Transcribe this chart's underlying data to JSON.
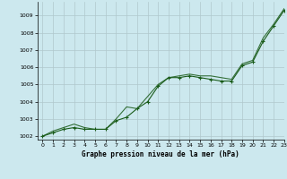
{
  "xlabel": "Graphe pression niveau de la mer (hPa)",
  "background_color": "#cce8ee",
  "grid_color": "#b0c8cc",
  "line_color1": "#1a5c1a",
  "line_color2": "#1a5c1a",
  "ylim": [
    1001.8,
    1009.8
  ],
  "xlim": [
    -0.5,
    23
  ],
  "yticks": [
    1002,
    1003,
    1004,
    1005,
    1006,
    1007,
    1008,
    1009
  ],
  "xticks": [
    0,
    1,
    2,
    3,
    4,
    5,
    6,
    7,
    8,
    9,
    10,
    11,
    12,
    13,
    14,
    15,
    16,
    17,
    18,
    19,
    20,
    21,
    22,
    23
  ],
  "series1_x": [
    0,
    1,
    2,
    3,
    4,
    5,
    6,
    7,
    8,
    9,
    10,
    11,
    12,
    13,
    14,
    15,
    16,
    17,
    18,
    19,
    20,
    21,
    22,
    23
  ],
  "series1_y": [
    1002.0,
    1002.2,
    1002.4,
    1002.5,
    1002.4,
    1002.4,
    1002.4,
    1002.9,
    1003.1,
    1003.6,
    1004.0,
    1004.9,
    1005.4,
    1005.4,
    1005.5,
    1005.4,
    1005.3,
    1005.2,
    1005.2,
    1006.1,
    1006.3,
    1007.5,
    1008.4,
    1009.3
  ],
  "series2_x": [
    0,
    1,
    2,
    3,
    4,
    5,
    6,
    7,
    8,
    9,
    10,
    11,
    12,
    13,
    14,
    15,
    16,
    17,
    18,
    19,
    20,
    21,
    22,
    23
  ],
  "series2_y": [
    1002.0,
    1002.3,
    1002.5,
    1002.7,
    1002.5,
    1002.4,
    1002.4,
    1003.0,
    1003.7,
    1003.6,
    1004.3,
    1005.0,
    1005.4,
    1005.5,
    1005.6,
    1005.5,
    1005.5,
    1005.4,
    1005.3,
    1006.2,
    1006.4,
    1007.7,
    1008.5,
    1009.4
  ]
}
